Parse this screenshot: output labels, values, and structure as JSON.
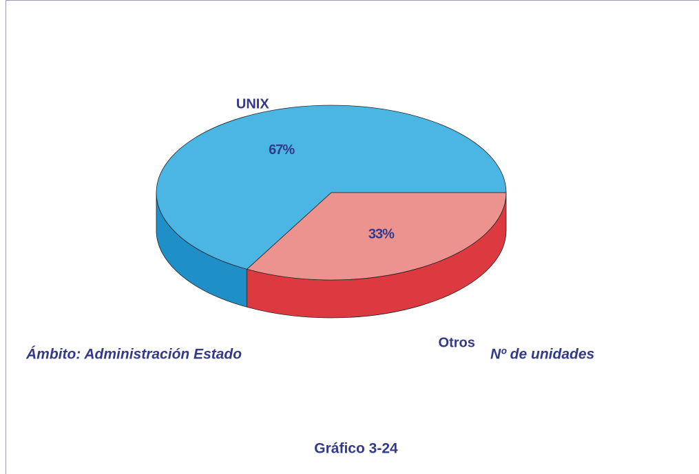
{
  "chart_data": {
    "type": "pie3d",
    "categories": [
      "UNIX",
      "Otros"
    ],
    "values": [
      67,
      33
    ],
    "value_labels": [
      "67%",
      "33%"
    ],
    "colors": [
      "#4bb5e3",
      "#ec9390"
    ],
    "side_colors": [
      "#1f8fc8",
      "#dc3a40"
    ],
    "annotations": [
      "Ámbito: Administración Estado",
      "Nº de unidades"
    ],
    "caption": "Gráfico 3-24"
  }
}
